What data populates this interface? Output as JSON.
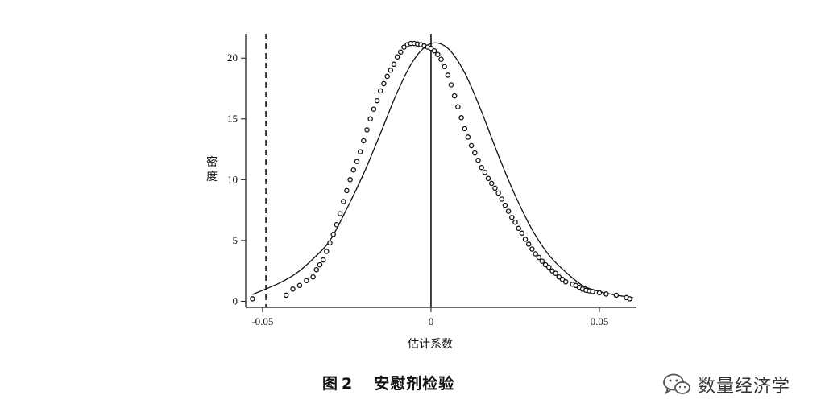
{
  "figure": {
    "caption_label": "图",
    "caption_number": "2",
    "caption_title": "安慰剂检验"
  },
  "watermark": {
    "text": "数量经济学",
    "icon": "wechat-icon"
  },
  "chart_data": {
    "type": "line",
    "xlabel": "估计系数",
    "ylabel": "密度",
    "xlim": [
      -0.055,
      0.061
    ],
    "ylim": [
      -0.5,
      22
    ],
    "x_ticks": [
      -0.05,
      0,
      0.05
    ],
    "x_tick_labels": [
      "-0.05",
      "0",
      "0.05"
    ],
    "y_ticks": [
      0,
      5,
      10,
      15,
      20
    ],
    "y_tick_labels": [
      "0",
      "5",
      "10",
      "15",
      "20"
    ],
    "reference_lines": [
      {
        "x": -0.049,
        "style": "dashed"
      },
      {
        "x": 0,
        "style": "solid"
      }
    ],
    "series": [
      {
        "style": "thin-line",
        "x": [
          -0.053,
          -0.045,
          -0.04,
          -0.035,
          -0.03,
          -0.025,
          -0.02,
          -0.015,
          -0.01,
          -0.005,
          0.0,
          0.005,
          0.01,
          0.015,
          0.02,
          0.025,
          0.03,
          0.035,
          0.04,
          0.045,
          0.05,
          0.055,
          0.06
        ],
        "y": [
          0.55,
          1.5,
          2.3,
          3.5,
          5.0,
          7.6,
          10.5,
          13.8,
          17.2,
          19.9,
          21.2,
          20.8,
          18.8,
          15.6,
          12.0,
          8.7,
          5.9,
          3.8,
          2.4,
          1.3,
          0.8,
          0.5,
          0.3
        ]
      },
      {
        "style": "scatter-circles",
        "x": [
          -0.053,
          -0.043,
          -0.041,
          -0.039,
          -0.037,
          -0.035,
          -0.034,
          -0.033,
          -0.032,
          -0.031,
          -0.03,
          -0.029,
          -0.028,
          -0.027,
          -0.026,
          -0.025,
          -0.024,
          -0.023,
          -0.022,
          -0.021,
          -0.02,
          -0.019,
          -0.018,
          -0.017,
          -0.016,
          -0.015,
          -0.014,
          -0.013,
          -0.012,
          -0.011,
          -0.01,
          -0.009,
          -0.008,
          -0.007,
          -0.006,
          -0.005,
          -0.004,
          -0.003,
          -0.002,
          -0.001,
          0.0,
          0.001,
          0.002,
          0.003,
          0.004,
          0.005,
          0.006,
          0.007,
          0.008,
          0.009,
          0.01,
          0.011,
          0.012,
          0.013,
          0.014,
          0.015,
          0.016,
          0.017,
          0.018,
          0.019,
          0.02,
          0.021,
          0.022,
          0.023,
          0.024,
          0.025,
          0.026,
          0.027,
          0.028,
          0.029,
          0.03,
          0.031,
          0.032,
          0.033,
          0.034,
          0.035,
          0.036,
          0.037,
          0.038,
          0.039,
          0.04,
          0.042,
          0.043,
          0.044,
          0.045,
          0.046,
          0.047,
          0.048,
          0.05,
          0.052,
          0.055,
          0.058,
          0.059
        ],
        "y": [
          0.2,
          0.5,
          1.0,
          1.3,
          1.7,
          2.0,
          2.6,
          3.0,
          3.4,
          4.1,
          4.8,
          5.5,
          6.3,
          7.2,
          8.2,
          9.1,
          10.0,
          10.8,
          11.5,
          12.3,
          13.2,
          14.1,
          15.0,
          15.8,
          16.5,
          17.3,
          17.9,
          18.5,
          19.0,
          19.5,
          20.1,
          20.5,
          20.9,
          21.1,
          21.2,
          21.2,
          21.15,
          21.1,
          21.0,
          20.9,
          20.8,
          20.6,
          20.3,
          19.9,
          19.3,
          18.6,
          17.8,
          16.9,
          16.0,
          15.1,
          14.2,
          13.5,
          12.8,
          12.2,
          11.6,
          11.0,
          10.6,
          10.1,
          9.7,
          9.3,
          8.9,
          8.4,
          7.9,
          7.4,
          6.9,
          6.5,
          6.0,
          5.6,
          5.1,
          4.7,
          4.3,
          3.9,
          3.6,
          3.3,
          3.0,
          2.8,
          2.5,
          2.3,
          2.0,
          1.8,
          1.6,
          1.4,
          1.3,
          1.15,
          1.0,
          0.9,
          0.85,
          0.8,
          0.7,
          0.6,
          0.5,
          0.3,
          0.2
        ]
      }
    ]
  }
}
